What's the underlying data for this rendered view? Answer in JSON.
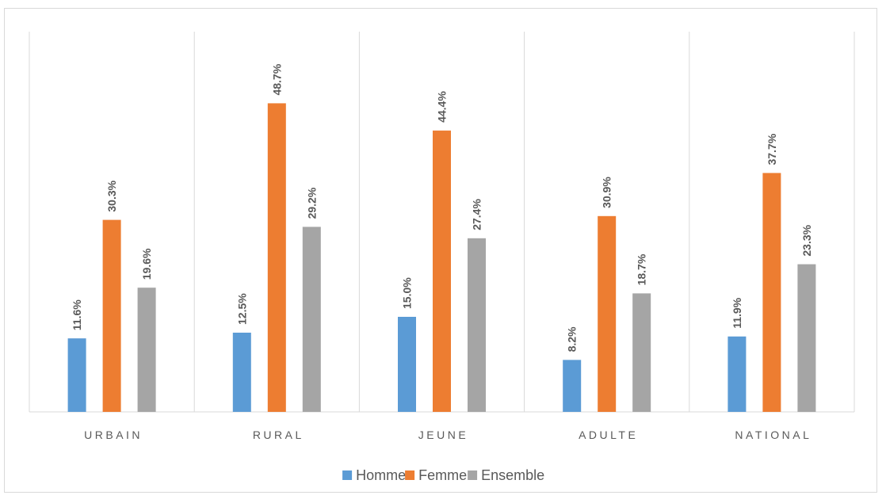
{
  "chart_data": {
    "type": "bar",
    "title": "",
    "xlabel": "",
    "ylabel": "",
    "categories": [
      "URBAIN",
      "RURAL",
      "JEUNE",
      "ADULTE",
      "NATIONAL"
    ],
    "ylim": [
      0,
      50
    ],
    "grid": false,
    "legend_position": "bottom",
    "series": [
      {
        "name": "Homme",
        "color": "#5b9bd5",
        "values": [
          11.6,
          12.5,
          15.0,
          8.2,
          11.9
        ],
        "labels": [
          "11.6%",
          "12.5%",
          "15.0%",
          "8.2%",
          "11.9%"
        ]
      },
      {
        "name": "Femme",
        "color": "#ed7d31",
        "values": [
          30.3,
          48.7,
          44.4,
          30.9,
          37.7
        ],
        "labels": [
          "30.3%",
          "48.7%",
          "44.4%",
          "30.9%",
          "37.7%"
        ]
      },
      {
        "name": "Ensemble",
        "color": "#a5a5a5",
        "values": [
          19.6,
          29.2,
          27.4,
          18.7,
          23.3
        ],
        "labels": [
          "19.6%",
          "29.2%",
          "27.4%",
          "18.7%",
          "23.3%"
        ]
      }
    ]
  }
}
